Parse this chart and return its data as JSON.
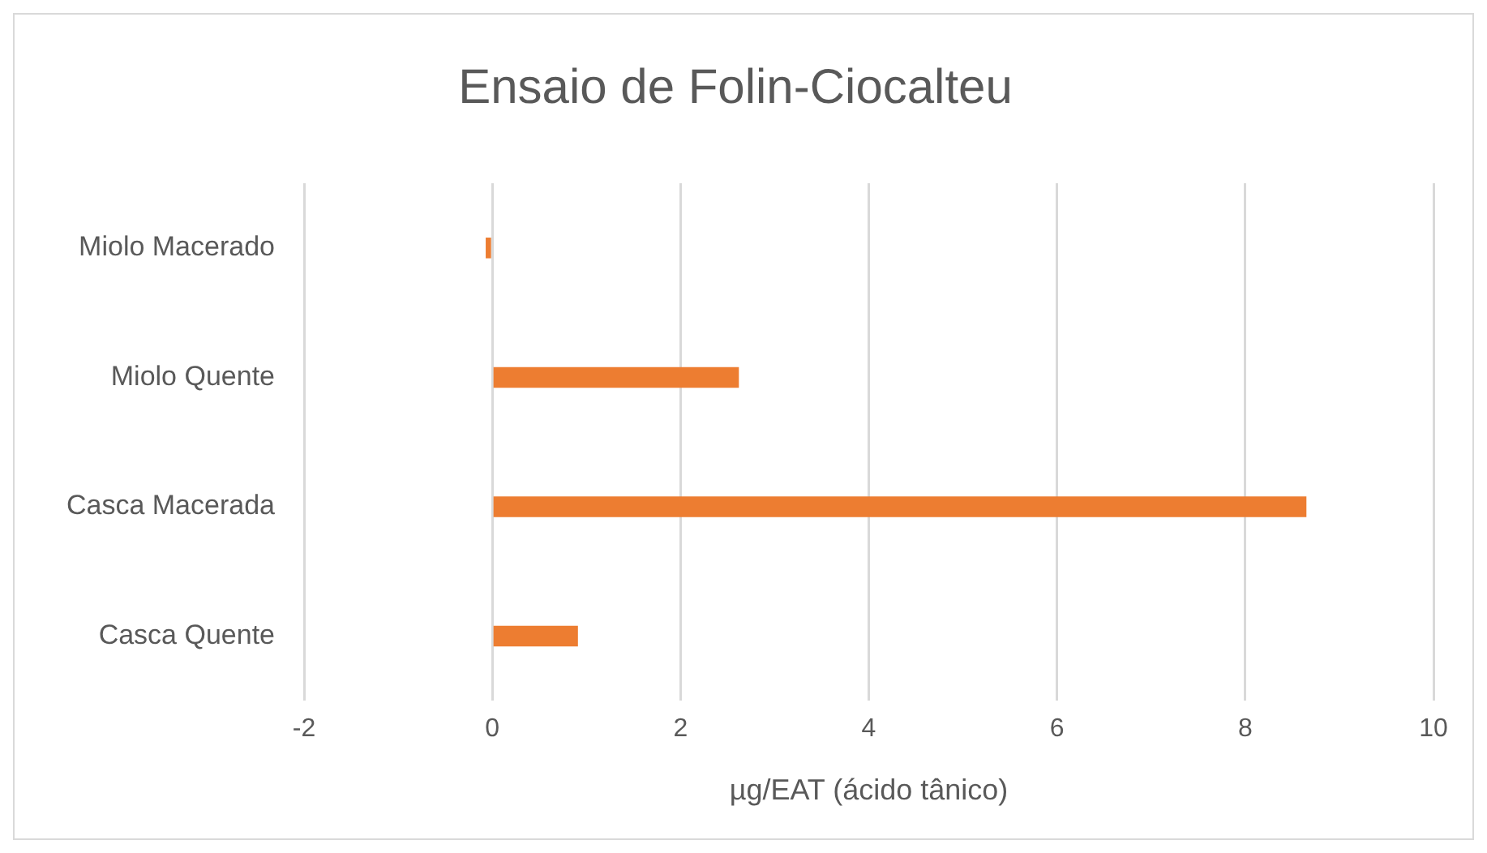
{
  "chart_data": {
    "type": "bar",
    "orientation": "horizontal",
    "title": "Ensaio de Folin-Ciocalteu",
    "xlabel": "µg/EAT (ácido tânico)",
    "categories": [
      "Miolo Macerado",
      "Miolo Quente",
      "Casca Macerada",
      "Casca Quente"
    ],
    "values": [
      -0.07,
      2.62,
      8.65,
      0.91
    ],
    "color": "#ed7d31",
    "xlim": [
      -2,
      10
    ],
    "xticks": [
      -2,
      0,
      2,
      4,
      6,
      8,
      10
    ],
    "grid": "x",
    "legend": false
  }
}
